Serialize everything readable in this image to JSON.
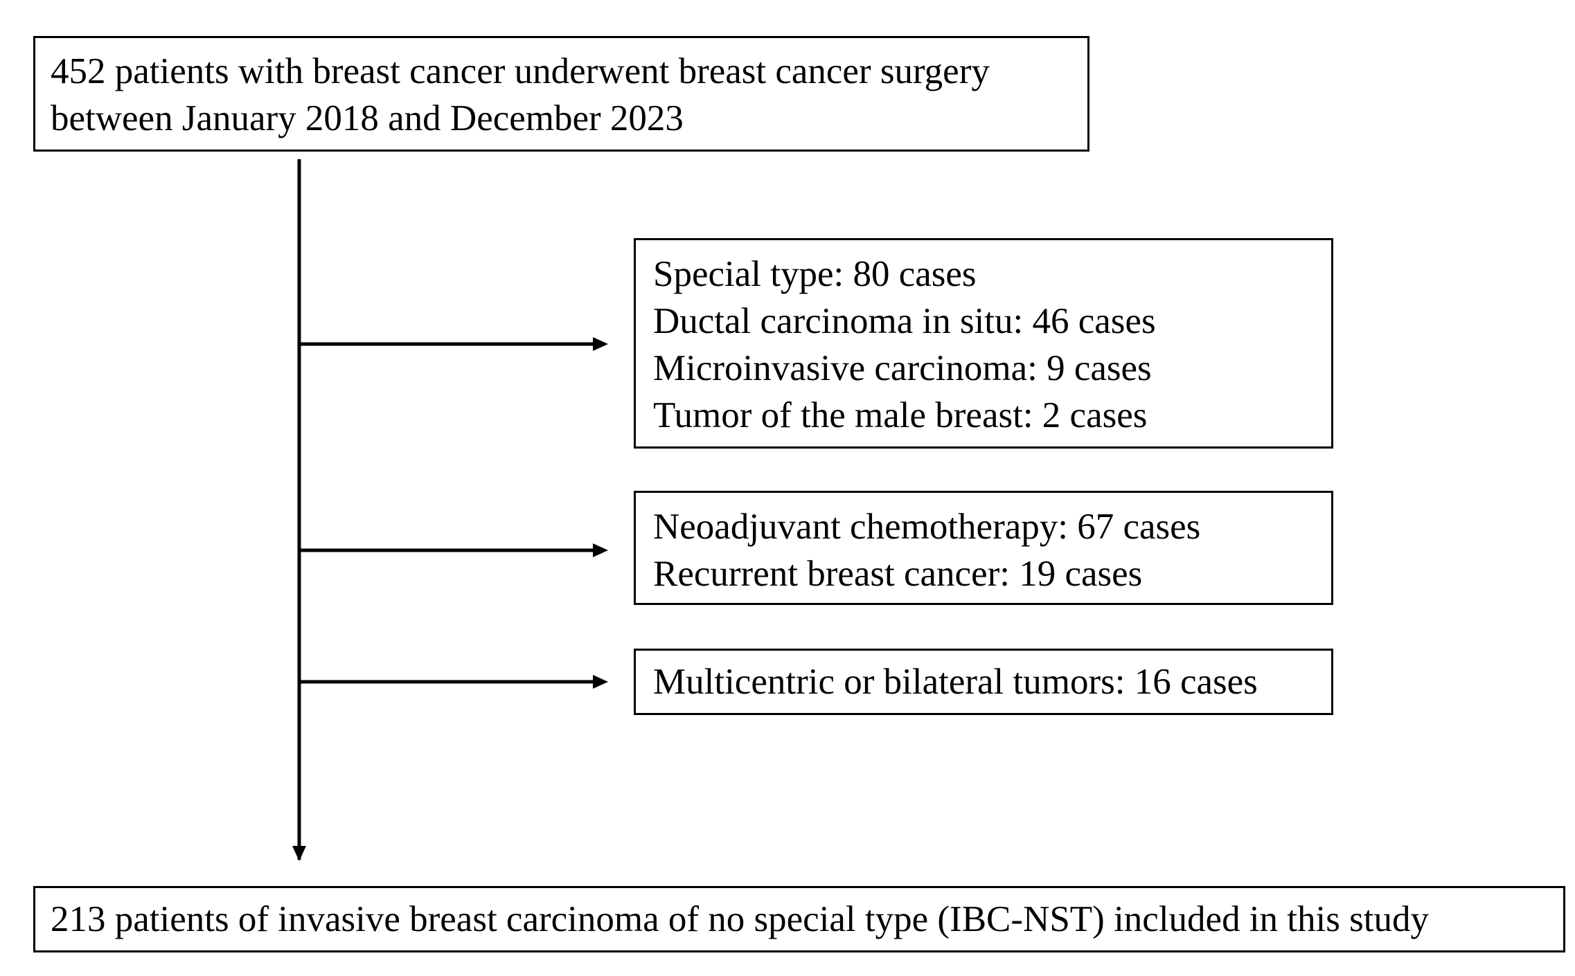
{
  "nodes": {
    "top": {
      "lines": [
        "452 patients with breast cancer underwent breast cancer surgery",
        "between January 2018 and December 2023"
      ]
    },
    "exclusion_1": {
      "lines": [
        "Special type: 80 cases",
        "Ductal carcinoma in situ: 46 cases",
        "Microinvasive carcinoma: 9 cases",
        "Tumor of the male breast: 2 cases"
      ]
    },
    "exclusion_2": {
      "lines": [
        "Neoadjuvant chemotherapy: 67 cases",
        "Recurrent breast cancer: 19 cases"
      ]
    },
    "exclusion_3": {
      "lines": [
        "Multicentric or bilateral tumors: 16 cases"
      ]
    },
    "bottom": {
      "lines": [
        "213 patients of invasive breast carcinoma of no special type (IBC-NST) included in this study"
      ]
    }
  },
  "edges": [
    {
      "from": "top",
      "to": "bottom"
    },
    {
      "from": "top",
      "to": "exclusion_1"
    },
    {
      "from": "top",
      "to": "exclusion_2"
    },
    {
      "from": "top",
      "to": "exclusion_3"
    }
  ],
  "colors": {
    "stroke": "#000000",
    "background": "#ffffff"
  }
}
